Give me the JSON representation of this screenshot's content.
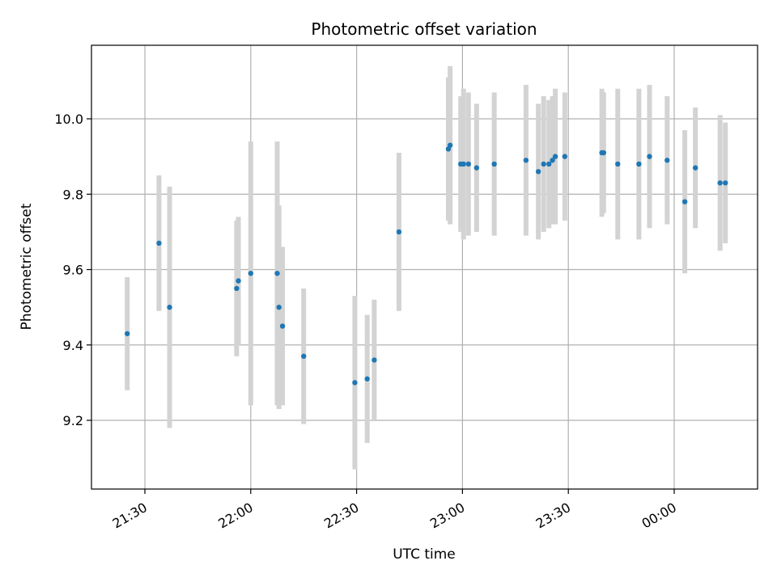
{
  "chart_data": {
    "type": "scatter",
    "title": "Photometric offset variation",
    "xlabel": "UTC time",
    "ylabel": "Photometric offset",
    "x_ticks": [
      "21:30",
      "22:00",
      "22:30",
      "23:00",
      "23:30",
      "00:00"
    ],
    "y_ticks": [
      "9.2",
      "9.4",
      "9.6",
      "9.8",
      "10.0"
    ],
    "grid": true,
    "legend": "none",
    "marker_color": "#1f77b4",
    "errorbar_color": "#d3d3d3",
    "points": [
      {
        "t": "21:25",
        "y": 9.43,
        "err": 0.15
      },
      {
        "t": "21:34",
        "y": 9.67,
        "err": 0.18
      },
      {
        "t": "21:37",
        "y": 9.5,
        "err": 0.32
      },
      {
        "t": "21:56",
        "y": 9.55,
        "err": 0.18
      },
      {
        "t": "21:56.5",
        "y": 9.57,
        "err": 0.17
      },
      {
        "t": "22:00",
        "y": 9.59,
        "err": 0.35
      },
      {
        "t": "22:07.5",
        "y": 9.59,
        "err": 0.35
      },
      {
        "t": "22:08",
        "y": 9.5,
        "err": 0.27
      },
      {
        "t": "22:09",
        "y": 9.45,
        "err": 0.21
      },
      {
        "t": "22:15",
        "y": 9.37,
        "err": 0.18
      },
      {
        "t": "22:29.5",
        "y": 9.3,
        "err": 0.23
      },
      {
        "t": "22:33",
        "y": 9.31,
        "err": 0.17
      },
      {
        "t": "22:35",
        "y": 9.36,
        "err": 0.16
      },
      {
        "t": "22:42",
        "y": 9.7,
        "err": 0.21
      },
      {
        "t": "22:56",
        "y": 9.92,
        "err": 0.19
      },
      {
        "t": "22:56.5",
        "y": 9.93,
        "err": 0.21
      },
      {
        "t": "22:59.5",
        "y": 9.88,
        "err": 0.18
      },
      {
        "t": "23:00.3",
        "y": 9.88,
        "err": 0.2
      },
      {
        "t": "23:01.7",
        "y": 9.88,
        "err": 0.19
      },
      {
        "t": "23:04",
        "y": 9.87,
        "err": 0.17
      },
      {
        "t": "23:09",
        "y": 9.88,
        "err": 0.19
      },
      {
        "t": "23:18",
        "y": 9.89,
        "err": 0.2
      },
      {
        "t": "23:21.5",
        "y": 9.86,
        "err": 0.18
      },
      {
        "t": "23:23",
        "y": 9.88,
        "err": 0.18
      },
      {
        "t": "23:24.5",
        "y": 9.88,
        "err": 0.17
      },
      {
        "t": "23:25.5",
        "y": 9.89,
        "err": 0.17
      },
      {
        "t": "23:26.3",
        "y": 9.9,
        "err": 0.18
      },
      {
        "t": "23:29",
        "y": 9.9,
        "err": 0.17
      },
      {
        "t": "23:39.5",
        "y": 9.91,
        "err": 0.17
      },
      {
        "t": "23:40",
        "y": 9.91,
        "err": 0.16
      },
      {
        "t": "23:44",
        "y": 9.88,
        "err": 0.2
      },
      {
        "t": "23:50",
        "y": 9.88,
        "err": 0.2
      },
      {
        "t": "23:53",
        "y": 9.9,
        "err": 0.19
      },
      {
        "t": "23:58",
        "y": 9.89,
        "err": 0.17
      },
      {
        "t": "00:03",
        "y": 9.78,
        "err": 0.19
      },
      {
        "t": "00:06",
        "y": 9.87,
        "err": 0.16
      },
      {
        "t": "00:13",
        "y": 9.83,
        "err": 0.18
      },
      {
        "t": "00:14.5",
        "y": 9.83,
        "err": 0.16
      }
    ]
  }
}
